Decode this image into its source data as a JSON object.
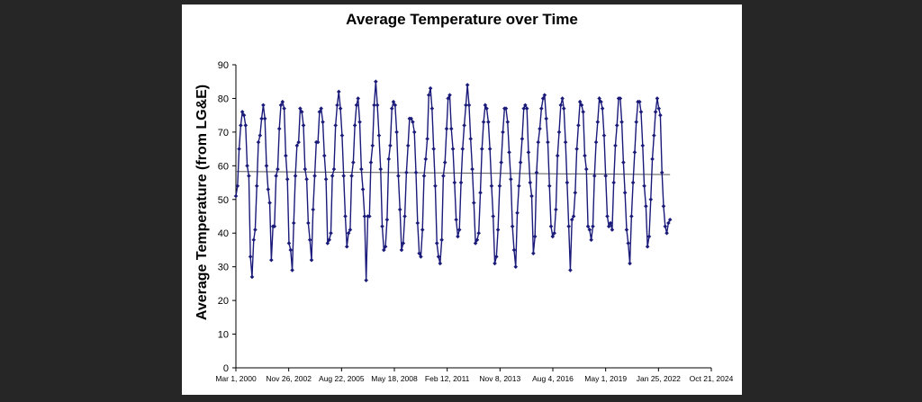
{
  "chart_data": {
    "type": "line",
    "title": "Average Temperature over Time",
    "xlabel": "",
    "ylabel": "Average Temperature  (from LG&E)",
    "ylim": [
      0,
      90
    ],
    "yticks": [
      0,
      10,
      20,
      30,
      40,
      50,
      60,
      70,
      80,
      90
    ],
    "xlim": [
      "2000-03-01",
      "2024-10-21"
    ],
    "xtick_labels": [
      "Mar 1, 2000",
      "Nov 26, 2002",
      "Aug 22, 2005",
      "May 18, 2008",
      "Feb 12, 2011",
      "Nov 8, 2013",
      "Aug 4, 2016",
      "May 1, 2019",
      "Jan 25, 2022",
      "Oct 21, 2024"
    ],
    "grid": false,
    "legend": "none",
    "series_color": "#1a1a7a",
    "trend_color": "#555555",
    "x_start": "2000-03",
    "x_step": "1 month",
    "values": [
      51,
      54,
      65,
      72,
      76,
      75,
      72,
      60,
      57,
      33,
      27,
      38,
      41,
      54,
      67,
      69,
      74,
      78,
      74,
      60,
      53,
      49,
      32,
      42,
      42,
      57,
      59,
      71,
      78,
      79,
      77,
      63,
      56,
      37,
      35,
      29,
      43,
      57,
      66,
      67,
      77,
      76,
      72,
      59,
      56,
      43,
      38,
      32,
      47,
      57,
      67,
      67,
      76,
      77,
      73,
      63,
      56,
      37,
      38,
      40,
      57,
      59,
      72,
      78,
      82,
      77,
      69,
      57,
      45,
      36,
      40,
      41,
      57,
      61,
      72,
      78,
      80,
      73,
      59,
      53,
      45,
      26,
      45,
      45,
      61,
      66,
      78,
      85,
      78,
      69,
      59,
      42,
      35,
      36,
      44,
      62,
      66,
      77,
      79,
      78,
      70,
      57,
      47,
      35,
      37,
      45,
      58,
      66,
      74,
      74,
      73,
      70,
      58,
      43,
      34,
      33,
      41,
      57,
      62,
      68,
      81,
      83,
      77,
      65,
      54,
      37,
      33,
      31,
      38,
      57,
      61,
      71,
      80,
      81,
      71,
      65,
      55,
      44,
      39,
      41,
      55,
      65,
      72,
      78,
      84,
      78,
      68,
      59,
      49,
      37,
      38,
      40,
      52,
      65,
      73,
      78,
      77,
      73,
      65,
      54,
      45,
      31,
      33,
      41,
      54,
      61,
      70,
      77,
      77,
      73,
      64,
      56,
      42,
      35,
      30,
      46,
      54,
      61,
      68,
      77,
      78,
      77,
      64,
      55,
      51,
      34,
      39,
      58,
      67,
      71,
      77,
      80,
      81,
      74,
      67,
      54,
      42,
      39,
      40,
      47,
      63,
      70,
      78,
      80,
      77,
      67,
      55,
      42,
      29,
      44,
      45,
      52,
      65,
      72,
      79,
      78,
      76,
      63,
      59,
      42,
      41,
      38,
      42,
      57,
      67,
      73,
      80,
      79,
      77,
      69,
      57,
      45,
      42,
      43,
      41,
      55,
      66,
      72,
      80,
      80,
      73,
      61,
      52,
      41,
      37,
      31,
      45,
      55,
      64,
      73,
      79,
      79,
      76,
      66,
      54,
      48,
      36,
      39,
      50,
      62,
      69,
      76,
      80,
      77,
      75,
      58,
      48,
      42,
      40,
      43,
      44
    ],
    "trend_start": 58.3,
    "trend_end": 57.4
  }
}
